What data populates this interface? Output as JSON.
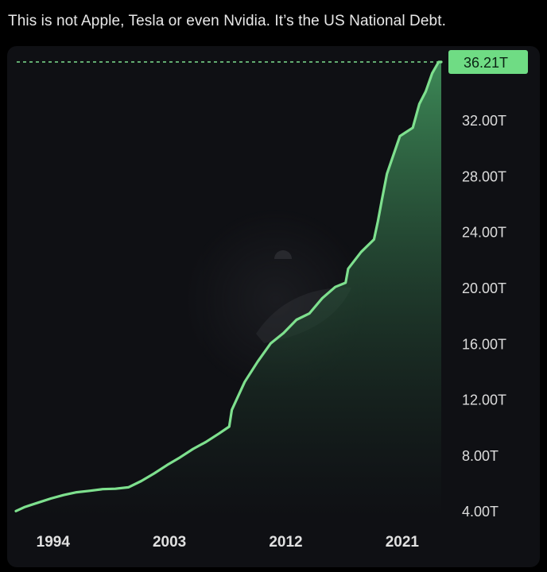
{
  "post": {
    "caption": "This is not Apple, Tesla or even Nvidia. It’s the US National Debt."
  },
  "colors": {
    "line": "#7ee08e",
    "area_top": "#3f8f5a",
    "area_bottom": "#0f1014",
    "badge": "#6fdc84",
    "background": "#0f1014"
  },
  "chart_data": {
    "type": "area",
    "title": "",
    "xlabel": "",
    "ylabel": "",
    "x_ticks": [
      "1994",
      "2003",
      "2012",
      "2021"
    ],
    "y_ticks": [
      "4.00T",
      "8.00T",
      "12.00T",
      "16.00T",
      "20.00T",
      "24.00T",
      "28.00T",
      "32.00T"
    ],
    "y_tick_values": [
      4,
      8,
      12,
      16,
      20,
      24,
      28,
      32
    ],
    "ylim": [
      3.5,
      36.21
    ],
    "xlim": [
      1992.3,
      2025.2
    ],
    "last_value_label": "36.21T",
    "last_value": 36.21,
    "y_axis_position": "right",
    "grid": false,
    "series": [
      {
        "x": [
          1992.3,
          1993,
          1994,
          1995,
          1996,
          1997,
          1998,
          1999,
          2000,
          2001,
          2002,
          2003,
          2004,
          2005,
          2006,
          2007,
          2008,
          2008.8,
          2009,
          2010,
          2011,
          2012,
          2013,
          2014,
          2015,
          2016,
          2017,
          2017.8,
          2018,
          2019,
          2020,
          2020.3,
          2020.6,
          2021,
          2022,
          2023,
          2023.5,
          2024,
          2024.5,
          2025,
          2025.2
        ],
        "values": [
          4.05,
          4.35,
          4.65,
          4.95,
          5.2,
          5.4,
          5.5,
          5.62,
          5.65,
          5.75,
          6.2,
          6.75,
          7.35,
          7.9,
          8.5,
          9.0,
          9.6,
          10.1,
          11.3,
          13.3,
          14.75,
          16.05,
          16.8,
          17.75,
          18.2,
          19.3,
          20.1,
          20.4,
          21.4,
          22.6,
          23.5,
          24.8,
          26.3,
          28.2,
          30.9,
          31.5,
          33.2,
          34.1,
          35.4,
          36.21,
          36.21
        ]
      }
    ]
  }
}
